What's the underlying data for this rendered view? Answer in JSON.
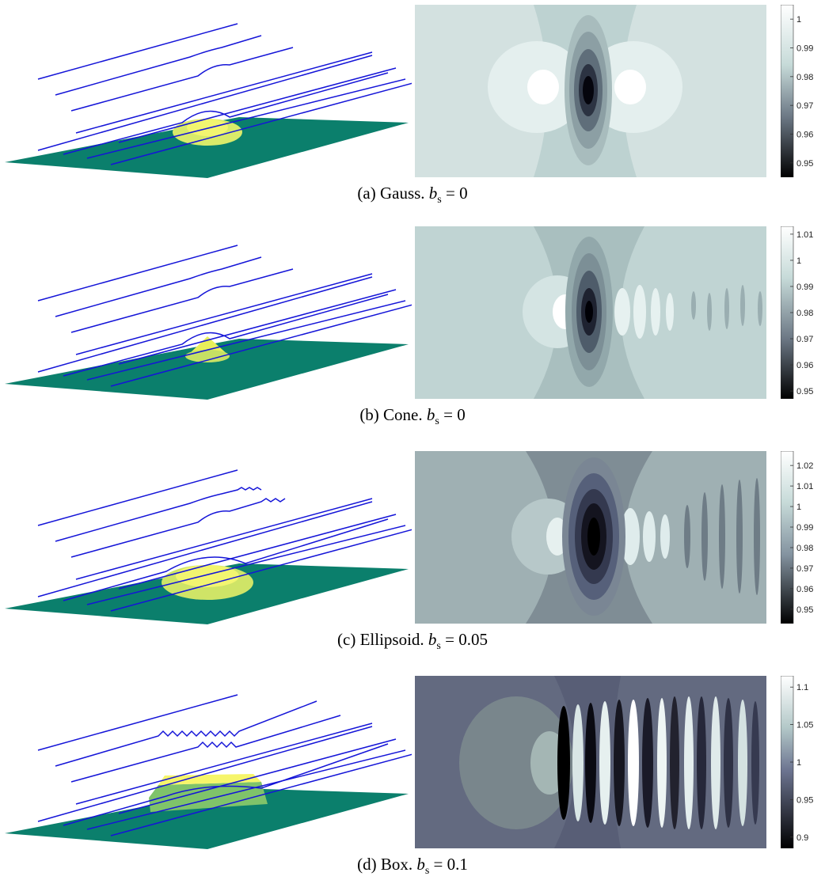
{
  "figure": {
    "panels": [
      {
        "id": "a",
        "shape": "Gauss",
        "caption": "(a) Gauss.",
        "b_s": "0",
        "colorbar_ticks": [
          "1",
          "0.99",
          "0.98",
          "0.97",
          "0.96",
          "0.95"
        ],
        "range": [
          0.945,
          1.005
        ]
      },
      {
        "id": "b",
        "shape": "Cone",
        "caption": "(b) Cone.",
        "b_s": "0",
        "colorbar_ticks": [
          "1.01",
          "1",
          "0.99",
          "0.98",
          "0.97",
          "0.96",
          "0.95"
        ],
        "range": [
          0.947,
          1.013
        ]
      },
      {
        "id": "c",
        "shape": "Ellipsoid",
        "caption": "(c) Ellipsoid.",
        "b_s": "0.05",
        "colorbar_ticks": [
          "1.02",
          "1.01",
          "1",
          "0.99",
          "0.98",
          "0.97",
          "0.96",
          "0.95"
        ],
        "range": [
          0.943,
          1.027
        ]
      },
      {
        "id": "d",
        "shape": "Box",
        "caption": "(d) Box.",
        "b_s": "0.1",
        "colorbar_ticks": [
          "1.1",
          "1.05",
          "1",
          "0.95",
          "0.9"
        ],
        "range": [
          0.885,
          1.115
        ]
      }
    ],
    "colors": {
      "streamline": "#1414d8",
      "base_plane": "#0b7f6c",
      "bump": "#e8ef5a"
    }
  }
}
